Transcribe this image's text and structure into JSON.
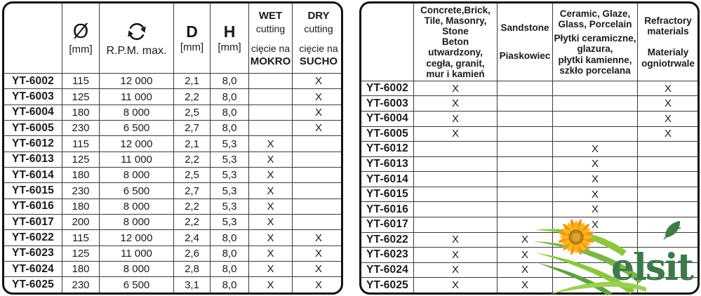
{
  "left_table": {
    "header": {
      "diameter_symbol": "Ø",
      "diameter_unit": "[mm]",
      "rpm_label": "R.P.M. max.",
      "d_label": "D",
      "d_unit": "[mm]",
      "h_label": "H",
      "h_unit": "[mm]",
      "wet": {
        "title": "WET",
        "subtitle": "cutting",
        "pl_prefix": "cięcie na",
        "pl_word": "MOKRO"
      },
      "dry": {
        "title": "DRY",
        "subtitle": "cutting",
        "pl_prefix": "cięcie na",
        "pl_word": "SUCHO"
      }
    },
    "rows": [
      {
        "model": "YT-6002",
        "dia": "115",
        "rpm": "12 000",
        "d": "2,1",
        "h": "8,0",
        "wet": "",
        "dry": "X"
      },
      {
        "model": "YT-6003",
        "dia": "125",
        "rpm": "11 000",
        "d": "2,2",
        "h": "8,0",
        "wet": "",
        "dry": "X"
      },
      {
        "model": "YT-6004",
        "dia": "180",
        "rpm": "8 000",
        "d": "2,5",
        "h": "8,0",
        "wet": "",
        "dry": "X"
      },
      {
        "model": "YT-6005",
        "dia": "230",
        "rpm": "6 500",
        "d": "2,7",
        "h": "8,0",
        "wet": "",
        "dry": "X"
      },
      {
        "model": "YT-6012",
        "dia": "115",
        "rpm": "12 000",
        "d": "2,1",
        "h": "5,3",
        "wet": "X",
        "dry": ""
      },
      {
        "model": "YT-6013",
        "dia": "125",
        "rpm": "11 000",
        "d": "2,2",
        "h": "5,3",
        "wet": "X",
        "dry": ""
      },
      {
        "model": "YT-6014",
        "dia": "180",
        "rpm": "8 000",
        "d": "2,5",
        "h": "5,3",
        "wet": "X",
        "dry": ""
      },
      {
        "model": "YT-6015",
        "dia": "230",
        "rpm": "6 500",
        "d": "2,7",
        "h": "5,3",
        "wet": "X",
        "dry": ""
      },
      {
        "model": "YT-6016",
        "dia": "180",
        "rpm": "8 000",
        "d": "2,2",
        "h": "5,3",
        "wet": "X",
        "dry": ""
      },
      {
        "model": "YT-6017",
        "dia": "200",
        "rpm": "8 000",
        "d": "2,2",
        "h": "5,3",
        "wet": "X",
        "dry": ""
      },
      {
        "model": "YT-6022",
        "dia": "115",
        "rpm": "12 000",
        "d": "2,4",
        "h": "8,0",
        "wet": "X",
        "dry": "X"
      },
      {
        "model": "YT-6023",
        "dia": "125",
        "rpm": "11 000",
        "d": "2,6",
        "h": "8,0",
        "wet": "X",
        "dry": "X"
      },
      {
        "model": "YT-6024",
        "dia": "180",
        "rpm": "8 000",
        "d": "2,8",
        "h": "8,0",
        "wet": "X",
        "dry": "X"
      },
      {
        "model": "YT-6025",
        "dia": "230",
        "rpm": "6 500",
        "d": "3,1",
        "h": "8,0",
        "wet": "X",
        "dry": "X"
      }
    ]
  },
  "right_table": {
    "header": {
      "concrete_en": "Concrete,Brick,\nTile, Masonry,\nStone",
      "concrete_pl": "Beton utwardzony,\ncegła, granit,\nmur i kamień",
      "sandstone_en": "Sandstone",
      "sandstone_pl": "Piaskowiec",
      "ceramic_en": "Ceramic, Glaze,\nGlass, Porcelain",
      "ceramic_pl": "Płytki ceramiczne,\nglazura,\npłytki kamienne,\nszkło porcelana",
      "refractory_en": "Refractory\nmaterials",
      "refractory_pl": "Materialy\nogniotrwale"
    },
    "rows": [
      {
        "model": "YT-6002",
        "concrete": "X",
        "sandstone": "",
        "ceramic": "",
        "refractory": "X"
      },
      {
        "model": "YT-6003",
        "concrete": "X",
        "sandstone": "",
        "ceramic": "",
        "refractory": "X"
      },
      {
        "model": "YT-6004",
        "concrete": "X",
        "sandstone": "",
        "ceramic": "",
        "refractory": "X"
      },
      {
        "model": "YT-6005",
        "concrete": "X",
        "sandstone": "",
        "ceramic": "",
        "refractory": "X"
      },
      {
        "model": "YT-6012",
        "concrete": "",
        "sandstone": "",
        "ceramic": "X",
        "refractory": ""
      },
      {
        "model": "YT-6013",
        "concrete": "",
        "sandstone": "",
        "ceramic": "X",
        "refractory": ""
      },
      {
        "model": "YT-6014",
        "concrete": "",
        "sandstone": "",
        "ceramic": "X",
        "refractory": ""
      },
      {
        "model": "YT-6015",
        "concrete": "",
        "sandstone": "",
        "ceramic": "X",
        "refractory": ""
      },
      {
        "model": "YT-6016",
        "concrete": "",
        "sandstone": "",
        "ceramic": "X",
        "refractory": ""
      },
      {
        "model": "YT-6017",
        "concrete": "",
        "sandstone": "",
        "ceramic": "X",
        "refractory": ""
      },
      {
        "model": "YT-6022",
        "concrete": "X",
        "sandstone": "X",
        "ceramic": "",
        "refractory": ""
      },
      {
        "model": "YT-6023",
        "concrete": "X",
        "sandstone": "X",
        "ceramic": "",
        "refractory": ""
      },
      {
        "model": "YT-6024",
        "concrete": "X",
        "sandstone": "X",
        "ceramic": "",
        "refractory": ""
      },
      {
        "model": "YT-6025",
        "concrete": "X",
        "sandstone": "X",
        "ceramic": "",
        "refractory": ""
      }
    ]
  },
  "logo": {
    "text": "elsit"
  },
  "icons": {
    "rpm_icon": "rotation-arrows-icon",
    "diameter_icon": "diameter-symbol",
    "logo_icons": [
      "sunflower-icon",
      "grass-icon",
      "leaf-icon"
    ]
  },
  "colors": {
    "table_border": "#121212",
    "grid_line": "#3a3a3a",
    "text": "#1a1a1a",
    "logo_green_dark": "#3c7b49",
    "grass_green": "#8cc63e",
    "grass_green_mid": "#7ab648",
    "grass_green_deep": "#5fa23c",
    "sunflower_orange": "#f7941d",
    "sunflower_yellow": "#fdb913",
    "sunflower_center": "#c4861c"
  }
}
